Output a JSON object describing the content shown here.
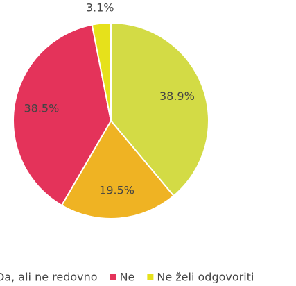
{
  "chart_data": {
    "type": "pie",
    "categories": [
      null,
      "Da, ali ne redovno",
      "Ne",
      "Ne želi odgovoriti"
    ],
    "values": [
      38.9,
      19.5,
      38.5,
      3.1
    ],
    "value_labels": [
      "38.9%",
      "19.5%",
      "38.5%",
      "3.1%"
    ],
    "colors": [
      "#d3db45",
      "#efb323",
      "#e4335a",
      "#e6e11b"
    ],
    "legend": "bottom"
  }
}
